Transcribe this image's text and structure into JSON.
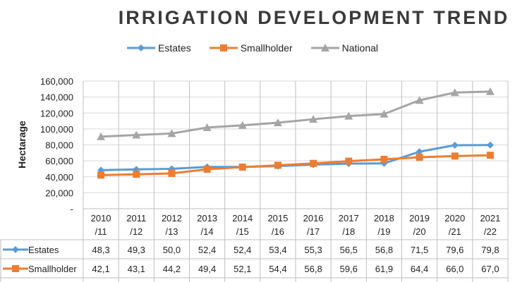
{
  "chart_data": {
    "type": "line",
    "title": "IRRIGATION DEVELOPMENT TREND",
    "xlabel": "",
    "ylabel": "Hectarage",
    "ylim": [
      0,
      160000
    ],
    "yticks": [
      "160,000",
      "140,000",
      "120,000",
      "100,000",
      "80,000",
      "60,000",
      "40,000",
      "20,000",
      "-"
    ],
    "ytick_values": [
      160000,
      140000,
      120000,
      100000,
      80000,
      60000,
      40000,
      20000,
      0
    ],
    "categories_top": [
      "2010",
      "2011",
      "2012",
      "2013",
      "2014",
      "2015",
      "2016",
      "2017",
      "2018",
      "2019",
      "2020",
      "2021"
    ],
    "categories_bottom": [
      "/11",
      "/12",
      "/13",
      "/14",
      "/15",
      "/16",
      "/17",
      "/18",
      "/19",
      "/20",
      "/21",
      "/22"
    ],
    "series": [
      {
        "name": "Estates",
        "color": "#5b9bd5",
        "marker": "diamond",
        "values": [
          48300,
          49300,
          50000,
          52400,
          52400,
          53400,
          55300,
          56500,
          56800,
          71500,
          79600,
          79800
        ],
        "table_values": [
          "48,3",
          "49,3",
          "50,0",
          "52,4",
          "52,4",
          "53,4",
          "55,3",
          "56,5",
          "56,8",
          "71,5",
          "79,6",
          "79,8"
        ]
      },
      {
        "name": "Smallholder",
        "color": "#ed7d31",
        "marker": "square",
        "values": [
          42100,
          43100,
          44200,
          49400,
          52100,
          54400,
          56800,
          59600,
          61900,
          64400,
          66000,
          67000
        ],
        "table_values": [
          "42,1",
          "43,1",
          "44,2",
          "49,4",
          "52,1",
          "54,4",
          "56,8",
          "59,6",
          "61,9",
          "64,4",
          "66,0",
          "67,0"
        ]
      },
      {
        "name": "National",
        "color": "#a5a5a5",
        "marker": "triangle",
        "values": [
          90400,
          92400,
          94200,
          101800,
          104500,
          107800,
          112100,
          116100,
          118700,
          135900,
          145600,
          146800
        ]
      }
    ],
    "grid": true,
    "legend_position": "top"
  }
}
